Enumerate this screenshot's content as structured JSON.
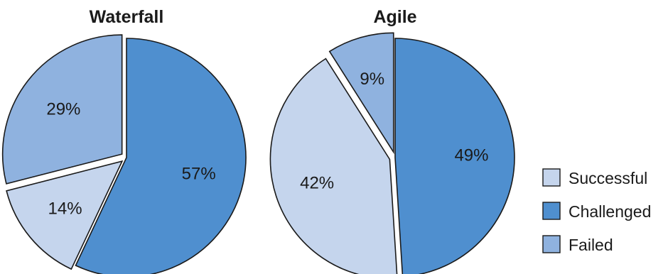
{
  "chart_data": [
    {
      "type": "pie",
      "title": "Waterfall",
      "start_angle_deg": 0,
      "slices": [
        {
          "label": "Challenged",
          "value": 57,
          "text": "57%",
          "explode": false
        },
        {
          "label": "Successful",
          "value": 14,
          "text": "14%",
          "explode": true
        },
        {
          "label": "Failed",
          "value": 29,
          "text": "29%",
          "explode": true
        }
      ]
    },
    {
      "type": "pie",
      "title": "Agile",
      "start_angle_deg": 0,
      "slices": [
        {
          "label": "Challenged",
          "value": 49,
          "text": "49%",
          "explode": false
        },
        {
          "label": "Successful",
          "value": 42,
          "text": "42%",
          "explode": true
        },
        {
          "label": "Failed",
          "value": 9,
          "text": "9%",
          "explode": true
        }
      ]
    }
  ],
  "legend": {
    "position": "bottom-right",
    "items": [
      {
        "label": "Successful",
        "color": "#c5d5ed"
      },
      {
        "label": "Challenged",
        "color": "#4f8fcf"
      },
      {
        "label": "Failed",
        "color": "#8fb2df"
      }
    ]
  },
  "colors": {
    "Successful": "#c5d5ed",
    "Challenged": "#4f8fcf",
    "Failed": "#8fb2df"
  }
}
